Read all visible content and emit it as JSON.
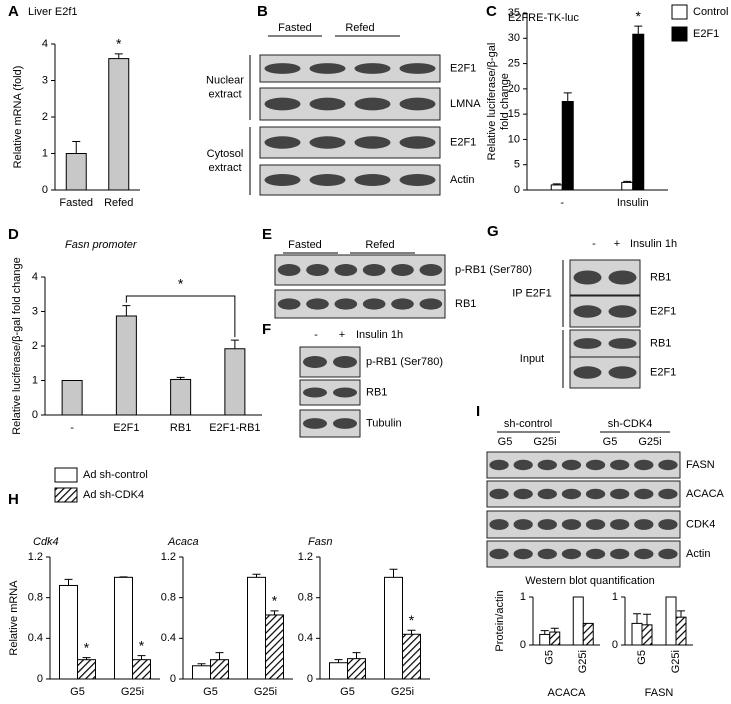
{
  "panel_labels": [
    "A",
    "B",
    "C",
    "D",
    "E",
    "F",
    "G",
    "H",
    "I"
  ],
  "chart_data": [
    {
      "type": "bar",
      "title": "Liver E2f1",
      "ylabel": "Relative mRNA (fold)",
      "categories": [
        "Fasted",
        "Refed"
      ],
      "values": [
        1.0,
        3.6
      ],
      "errors": [
        0.33,
        0.13
      ],
      "stars": [
        null,
        "*"
      ],
      "color": "#c8c8c8",
      "ylim": [
        0,
        4
      ],
      "yticks": [
        0,
        1,
        2,
        3,
        4
      ]
    },
    {
      "type": "bar",
      "title": "E2FRE-TK-luc",
      "ylabel": [
        "Relative luciferase/β-gal",
        "fold change"
      ],
      "categories": [
        "-",
        "Insulin"
      ],
      "series": [
        {
          "name": "Control",
          "color": "#ffffff",
          "values": [
            1.0,
            1.5
          ],
          "errors": [
            0.2,
            0.2
          ]
        },
        {
          "name": "E2F1",
          "color": "#000000",
          "values": [
            17.5,
            30.8
          ],
          "errors": [
            1.7,
            1.6
          ],
          "stars": [
            null,
            "*"
          ]
        }
      ],
      "ylim": [
        0,
        35
      ],
      "yticks": [
        0,
        5,
        10,
        15,
        20,
        25,
        30,
        35
      ]
    },
    {
      "type": "bar",
      "title": "Fasn promoter",
      "ylabel": "Relative luciferase/β-gal fold change",
      "categories": [
        "-",
        "E2F1",
        "RB1",
        "E2F1-RB1"
      ],
      "values": [
        1.0,
        2.87,
        1.03,
        1.92
      ],
      "errors": [
        null,
        0.3,
        0.06,
        0.25
      ],
      "annotation": "*",
      "color": "#c8c8c8",
      "ylim": [
        0,
        4
      ],
      "yticks": [
        0,
        1,
        2,
        3,
        4
      ]
    },
    {
      "type": "bar",
      "title": "Cdk4",
      "ylabel": "Relative mRNA",
      "categories": [
        "G5",
        "G25i"
      ],
      "series": [
        {
          "name": "Ad sh-control",
          "color": "#ffffff",
          "values": [
            0.92,
            1.0
          ],
          "errors": [
            0.06,
            0.005
          ]
        },
        {
          "name": "Ad sh-CDK4",
          "color": "#000000",
          "hatch": true,
          "values": [
            0.19,
            0.19
          ],
          "errors": [
            0.02,
            0.04
          ],
          "stars": [
            "*",
            "*"
          ]
        }
      ],
      "ylim": [
        0,
        1.2
      ],
      "yticks": [
        0,
        0.4,
        0.8,
        1.2
      ]
    },
    {
      "type": "bar",
      "title": "Acaca",
      "categories": [
        "G5",
        "G25i"
      ],
      "series": [
        {
          "color": "#ffffff",
          "values": [
            0.13,
            1.0
          ],
          "errors": [
            0.02,
            0.03
          ]
        },
        {
          "color": "#000000",
          "hatch": true,
          "values": [
            0.19,
            0.63
          ],
          "errors": [
            0.07,
            0.04
          ],
          "stars": [
            null,
            "*"
          ]
        }
      ],
      "ylim": [
        0,
        1.2
      ],
      "yticks": [
        0,
        0.4,
        0.8,
        1.2
      ]
    },
    {
      "type": "bar",
      "title": "Fasn",
      "categories": [
        "G5",
        "G25i"
      ],
      "series": [
        {
          "color": "#ffffff",
          "values": [
            0.16,
            1.0
          ],
          "errors": [
            0.03,
            0.08
          ]
        },
        {
          "color": "#000000",
          "hatch": true,
          "values": [
            0.2,
            0.44
          ],
          "errors": [
            0.06,
            0.04
          ],
          "stars": [
            null,
            "*"
          ]
        }
      ],
      "ylim": [
        0,
        1.2
      ],
      "yticks": [
        0,
        0.4,
        0.8,
        1.2
      ]
    },
    {
      "type": "bar",
      "title": "Western blot quantification",
      "ylabel": "Protein/actin",
      "xlabel": "ACACA",
      "categories": [
        "G5",
        "G25i"
      ],
      "series": [
        {
          "color": "#ffffff",
          "values": [
            0.22,
            1.0
          ],
          "errors": [
            0.08,
            null
          ]
        },
        {
          "color": "#000000",
          "hatch": true,
          "values": [
            0.27,
            0.45
          ],
          "errors": [
            0.08,
            null
          ]
        }
      ],
      "ylim": [
        0,
        1
      ],
      "yticks": [
        0,
        1
      ]
    },
    {
      "type": "bar",
      "xlabel": "FASN",
      "categories": [
        "G5",
        "G25i"
      ],
      "series": [
        {
          "color": "#ffffff",
          "values": [
            0.45,
            1.0
          ],
          "errors": [
            0.2,
            null
          ]
        },
        {
          "color": "#000000",
          "hatch": true,
          "values": [
            0.42,
            0.58
          ],
          "errors": [
            0.22,
            0.13
          ]
        }
      ],
      "ylim": [
        0,
        1
      ],
      "yticks": [
        0,
        1
      ]
    }
  ],
  "blots": [
    {
      "headers": [
        "Fasted",
        "Refed"
      ],
      "rows": [
        "E2F1",
        "LMNA",
        "E2F1",
        "Actin"
      ],
      "groups": [
        [
          "Nuclear",
          "extract"
        ],
        [
          "Cytosol",
          "extract"
        ]
      ]
    },
    {
      "headers": [
        "Fasted",
        "Refed"
      ],
      "rows": [
        "p-RB1 (Ser780)",
        "RB1"
      ]
    },
    {
      "headers": [
        "-",
        "+"
      ],
      "treatment": "Insulin 1h",
      "rows": [
        "p-RB1 (Ser780)",
        "RB1",
        "Tubulin"
      ]
    },
    {
      "headers": [
        "-",
        "+"
      ],
      "treatment": "Insulin 1h",
      "rows": [
        "RB1",
        "E2F1",
        "RB1",
        "E2F1"
      ],
      "groups": [
        "IP E2F1",
        "Input"
      ]
    },
    {
      "headers": [
        "sh-control",
        "sh-CDK4"
      ],
      "lanes": [
        "G5",
        "G25i",
        "G5",
        "G25i"
      ],
      "rows": [
        "FASN",
        "ACACA",
        "CDK4",
        "Actin"
      ]
    }
  ]
}
